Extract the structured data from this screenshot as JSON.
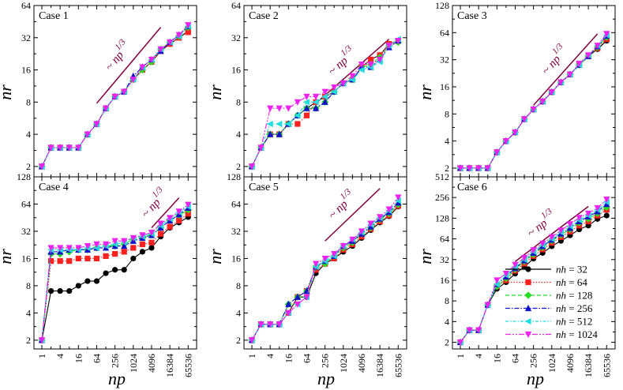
{
  "figure": {
    "ylabel_left": "nr",
    "xlabel": "np",
    "slope_label": "~ np",
    "slope_exp": "1/3",
    "colors": {
      "slope": "#800040",
      "frame": "#000000"
    }
  },
  "legend": {
    "prefix": "nh",
    "items": [
      {
        "label": " = 32",
        "color": "#000000",
        "marker": "circle",
        "dash": "solid"
      },
      {
        "label": " = 64",
        "color": "#ff2020",
        "marker": "square",
        "dash": "dotted"
      },
      {
        "label": " = 128",
        "color": "#22dd22",
        "marker": "diamond",
        "dash": "dashed"
      },
      {
        "label": " = 256",
        "color": "#1010c8",
        "marker": "triangle-up",
        "dash": "dashdot"
      },
      {
        "label": " = 512",
        "color": "#22dddd",
        "marker": "triangle-left",
        "dash": "dashdot2"
      },
      {
        "label": " = 1024",
        "color": "#ee22ee",
        "marker": "triangle-down",
        "dash": "dashdot3"
      }
    ]
  },
  "chart_data": [
    {
      "type": "line",
      "title": "Case 1",
      "xscale": "log2",
      "yscale": "log2",
      "xticks": [
        "1",
        "4",
        "16",
        "64",
        "256",
        "1024",
        "4096",
        "16384",
        "65536"
      ],
      "yticks": [
        "2",
        "4",
        "8",
        "16",
        "32",
        "64"
      ],
      "ylim": [
        1.6,
        64
      ],
      "x": [
        1,
        2,
        4,
        8,
        16,
        32,
        64,
        128,
        256,
        512,
        1024,
        2048,
        4096,
        8192,
        16384,
        32768,
        65536
      ],
      "series": [
        {
          "name": "nh = 32",
          "values": [
            2,
            3,
            3,
            3,
            3,
            4,
            5,
            7,
            9,
            10,
            13,
            16,
            19,
            24,
            28,
            32,
            37
          ]
        },
        {
          "name": "nh = 64",
          "values": [
            2,
            3,
            3,
            3,
            3,
            4,
            5,
            7,
            9,
            10,
            13,
            16,
            19,
            24,
            28,
            32,
            36
          ]
        },
        {
          "name": "nh = 128",
          "values": [
            2,
            3,
            3,
            3,
            3,
            4,
            5,
            7,
            9,
            10,
            13,
            16,
            19,
            25,
            29,
            33,
            40
          ]
        },
        {
          "name": "nh = 256",
          "values": [
            2,
            3,
            3,
            3,
            3,
            4,
            5,
            7,
            9,
            10,
            14,
            17,
            20,
            24,
            29,
            34,
            41
          ]
        },
        {
          "name": "nh = 512",
          "values": [
            2,
            3,
            3,
            3,
            3,
            4,
            5,
            7,
            9,
            10,
            13,
            17,
            20,
            25,
            29,
            33,
            41
          ]
        },
        {
          "name": "nh = 1024",
          "values": [
            2,
            3,
            3,
            3,
            3,
            4,
            5,
            7,
            9,
            10,
            13,
            17,
            20,
            25,
            29,
            34,
            42
          ]
        }
      ],
      "slope_line": {
        "x": [
          64,
          8192
        ],
        "y": [
          7.8,
          40
        ]
      }
    },
    {
      "type": "line",
      "title": "Case 2",
      "xscale": "log2",
      "yscale": "log2",
      "xticks": [
        "1",
        "4",
        "16",
        "64",
        "256",
        "1024",
        "4096",
        "16384",
        "65536"
      ],
      "yticks": [
        "2",
        "4",
        "8",
        "16",
        "32",
        "64"
      ],
      "ylim": [
        1.6,
        64
      ],
      "x": [
        1,
        2,
        4,
        8,
        16,
        32,
        64,
        128,
        256,
        512,
        1024,
        2048,
        4096,
        8192,
        16384,
        32768,
        65536
      ],
      "series": [
        {
          "name": "nh = 32",
          "values": [
            2,
            3,
            4,
            4,
            5,
            6,
            7,
            8,
            9,
            10,
            12,
            13,
            17,
            20,
            22,
            28,
            30
          ]
        },
        {
          "name": "nh = 64",
          "values": [
            2,
            3,
            4,
            4,
            5,
            5,
            6,
            8,
            9,
            10,
            12,
            13,
            17,
            20,
            22,
            28,
            30
          ]
        },
        {
          "name": "nh = 128",
          "values": [
            2,
            3,
            4,
            4,
            5,
            6,
            7,
            7,
            8,
            10,
            12,
            13,
            17,
            18,
            21,
            27,
            29
          ]
        },
        {
          "name": "nh = 256",
          "values": [
            2,
            3,
            4,
            4,
            5,
            6,
            7,
            7,
            8,
            10,
            12,
            13,
            17,
            17,
            20,
            26,
            30
          ]
        },
        {
          "name": "nh = 512",
          "values": [
            2,
            3,
            5,
            5,
            5,
            6,
            8,
            8,
            9,
            10,
            12,
            13,
            16,
            17,
            19,
            27,
            31
          ]
        },
        {
          "name": "nh = 1024",
          "values": [
            2,
            3,
            7,
            7,
            7,
            8,
            9,
            9,
            10,
            11,
            12,
            14,
            18,
            18,
            20,
            27,
            30
          ]
        }
      ],
      "slope_line": {
        "x": [
          128,
          32768
        ],
        "y": [
          7.8,
          31
        ]
      }
    },
    {
      "type": "line",
      "title": "Case 3",
      "xscale": "log2",
      "yscale": "log2",
      "xticks": [
        "1",
        "4",
        "16",
        "64",
        "256",
        "1024",
        "4096",
        "16384",
        "65536"
      ],
      "yticks": [
        "2",
        "4",
        "8",
        "16",
        "32",
        "64",
        "128"
      ],
      "ylim": [
        1.6,
        128
      ],
      "x": [
        1,
        2,
        4,
        8,
        16,
        32,
        64,
        128,
        256,
        512,
        1024,
        2048,
        4096,
        8192,
        16384,
        32768,
        65536
      ],
      "series": [
        {
          "name": "nh = 32",
          "values": [
            2,
            2,
            2,
            2,
            3,
            4,
            5,
            7,
            9,
            11,
            14,
            18,
            22,
            28,
            35,
            42,
            52
          ]
        },
        {
          "name": "nh = 64",
          "values": [
            2,
            2,
            2,
            2,
            3,
            4,
            5,
            7,
            9,
            11,
            14,
            18,
            22,
            28,
            35,
            43,
            54
          ]
        },
        {
          "name": "nh = 128",
          "values": [
            2,
            2,
            2,
            2,
            3,
            4,
            5,
            7,
            9,
            11,
            14,
            18,
            22,
            28,
            35,
            44,
            57
          ]
        },
        {
          "name": "nh = 256",
          "values": [
            2,
            2,
            2,
            2,
            3,
            4,
            5,
            7,
            9,
            11,
            14,
            18,
            22,
            28,
            35,
            45,
            59
          ]
        },
        {
          "name": "nh = 512",
          "values": [
            2,
            2,
            2,
            2,
            3,
            4,
            5,
            7,
            9,
            11,
            14,
            18,
            22,
            28,
            36,
            46,
            60
          ]
        },
        {
          "name": "nh = 1024",
          "values": [
            2,
            2,
            2,
            2,
            3,
            4,
            5,
            7,
            9,
            11,
            14,
            18,
            22,
            29,
            36,
            46,
            62
          ]
        }
      ],
      "slope_line": {
        "x": [
          256,
          32768
        ],
        "y": [
          10,
          62
        ]
      }
    },
    {
      "type": "line",
      "title": "Case 4",
      "xscale": "log2",
      "yscale": "log2",
      "xticks": [
        "1",
        "4",
        "16",
        "64",
        "256",
        "1024",
        "4096",
        "16384",
        "65536"
      ],
      "yticks": [
        "2",
        "4",
        "8",
        "16",
        "32",
        "64",
        "128"
      ],
      "ylim": [
        1.6,
        128
      ],
      "x": [
        1,
        2,
        4,
        8,
        16,
        32,
        64,
        128,
        256,
        512,
        1024,
        2048,
        4096,
        8192,
        16384,
        32768,
        65536
      ],
      "series": [
        {
          "name": "nh = 32",
          "values": [
            2,
            7,
            7,
            7,
            8,
            9,
            9,
            11,
            12,
            12,
            16,
            19,
            21,
            28,
            35,
            40,
            46
          ]
        },
        {
          "name": "nh = 64",
          "values": [
            2,
            15,
            15,
            15,
            16,
            16,
            16,
            17,
            18,
            19,
            21,
            23,
            24,
            30,
            36,
            42,
            50
          ]
        },
        {
          "name": "nh = 128",
          "values": [
            2,
            18,
            18,
            19,
            20,
            20,
            21,
            22,
            22,
            23,
            26,
            27,
            29,
            35,
            42,
            48,
            55
          ]
        },
        {
          "name": "nh = 256",
          "values": [
            2,
            19,
            19,
            20,
            20,
            20,
            21,
            21,
            22,
            22,
            25,
            27,
            29,
            35,
            42,
            49,
            58
          ]
        },
        {
          "name": "nh = 512",
          "values": [
            2,
            20,
            20,
            20,
            20,
            21,
            21,
            22,
            23,
            24,
            27,
            28,
            30,
            37,
            44,
            52,
            60
          ]
        },
        {
          "name": "nh = 1024",
          "values": [
            2,
            21,
            21,
            21,
            21,
            22,
            23,
            23,
            25,
            25,
            27,
            29,
            31,
            39,
            45,
            53,
            63
          ]
        }
      ],
      "slope_line": {
        "x": [
          4096,
          32768
        ],
        "y": [
          35,
          75
        ]
      }
    },
    {
      "type": "line",
      "title": "Case 5",
      "xscale": "log2",
      "yscale": "log2",
      "xticks": [
        "1",
        "4",
        "16",
        "64",
        "256",
        "1024",
        "4096",
        "16384",
        "65536"
      ],
      "yticks": [
        "2",
        "4",
        "8",
        "16",
        "32",
        "64",
        "128"
      ],
      "ylim": [
        1.6,
        128
      ],
      "x": [
        1,
        2,
        4,
        8,
        16,
        32,
        64,
        128,
        256,
        512,
        1024,
        2048,
        4096,
        8192,
        16384,
        32768,
        65536
      ],
      "series": [
        {
          "name": "nh = 32",
          "values": [
            2,
            3,
            3,
            3,
            4,
            6,
            6,
            11,
            14,
            16,
            19,
            22,
            27,
            33,
            40,
            47,
            60
          ]
        },
        {
          "name": "nh = 64",
          "values": [
            2,
            3,
            3,
            3,
            4,
            6,
            7,
            12,
            14,
            16,
            20,
            23,
            28,
            34,
            41,
            48,
            61
          ]
        },
        {
          "name": "nh = 128",
          "values": [
            2,
            3,
            3,
            3,
            5,
            6,
            7,
            13,
            14,
            17,
            21,
            24,
            30,
            35,
            43,
            50,
            63
          ]
        },
        {
          "name": "nh = 256",
          "values": [
            2,
            3,
            3,
            3,
            5,
            6,
            7,
            13,
            15,
            17,
            22,
            25,
            30,
            36,
            44,
            52,
            66
          ]
        },
        {
          "name": "nh = 512",
          "values": [
            2,
            3,
            3,
            3,
            4,
            5,
            6,
            13,
            15,
            17,
            22,
            26,
            31,
            38,
            45,
            54,
            70
          ]
        },
        {
          "name": "nh = 1024",
          "values": [
            2,
            3,
            3,
            3,
            4,
            5,
            6,
            14,
            16,
            18,
            22,
            26,
            32,
            39,
            46,
            56,
            76
          ]
        }
      ],
      "slope_line": {
        "x": [
          256,
          16384
        ],
        "y": [
          25,
          95
        ]
      }
    },
    {
      "type": "line",
      "title": "Case 6",
      "xscale": "log2",
      "yscale": "log2",
      "xticks": [
        "1",
        "4",
        "16",
        "64",
        "256",
        "1024",
        "4096",
        "16384",
        "65536"
      ],
      "yticks": [
        "2",
        "4",
        "8",
        "16",
        "32",
        "64",
        "128",
        "256",
        "512"
      ],
      "ylim": [
        1.6,
        512
      ],
      "x": [
        1,
        2,
        4,
        8,
        16,
        32,
        64,
        128,
        256,
        512,
        1024,
        2048,
        4096,
        8192,
        16384,
        32768,
        65536
      ],
      "series": [
        {
          "name": "nh = 32",
          "values": [
            2,
            3,
            3,
            7,
            12,
            15,
            20,
            25,
            33,
            40,
            50,
            60,
            72,
            88,
            100,
            125,
            140
          ]
        },
        {
          "name": "nh = 64",
          "values": [
            2,
            3,
            3,
            7,
            13,
            16,
            22,
            28,
            36,
            45,
            56,
            68,
            82,
            100,
            115,
            140,
            170
          ]
        },
        {
          "name": "nh = 128",
          "values": [
            2,
            3,
            3,
            7,
            13,
            17,
            23,
            30,
            38,
            48,
            60,
            73,
            88,
            110,
            125,
            150,
            185
          ]
        },
        {
          "name": "nh = 256",
          "values": [
            2,
            3,
            3,
            7,
            14,
            18,
            24,
            31,
            40,
            50,
            62,
            76,
            92,
            115,
            135,
            160,
            205
          ]
        },
        {
          "name": "nh = 512",
          "values": [
            2,
            3,
            3,
            7,
            14,
            19,
            25,
            32,
            42,
            52,
            64,
            80,
            98,
            120,
            140,
            170,
            220
          ]
        },
        {
          "name": "nh = 1024",
          "values": [
            2,
            3,
            3,
            7,
            16,
            20,
            27,
            34,
            44,
            55,
            68,
            85,
            105,
            130,
            150,
            180,
            240
          ]
        }
      ],
      "slope_line": {
        "x": [
          64,
          16384
        ],
        "y": [
          30,
          190
        ]
      }
    }
  ]
}
